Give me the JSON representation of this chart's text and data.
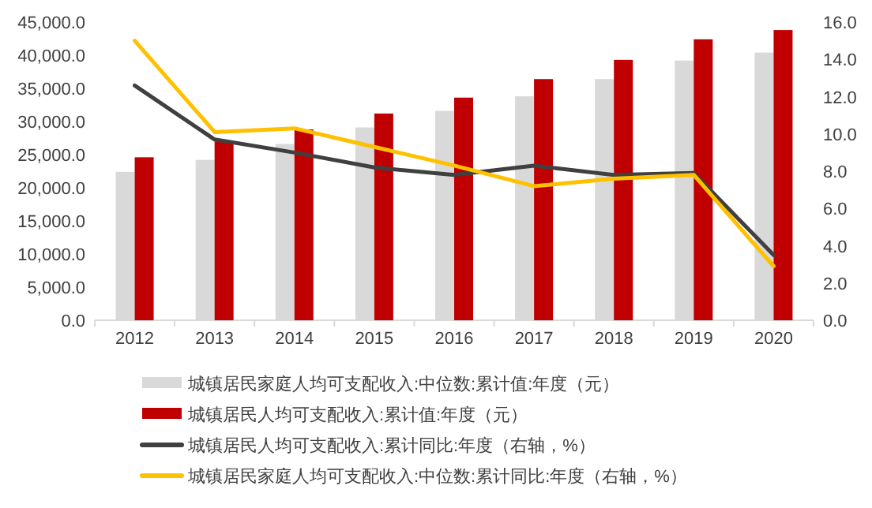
{
  "chart_data": {
    "type": "bar",
    "categories": [
      "2012",
      "2013",
      "2014",
      "2015",
      "2016",
      "2017",
      "2018",
      "2019",
      "2020"
    ],
    "series": [
      {
        "name": "城镇居民家庭人均可支配收入:中位数:累计值:年度（元）",
        "color": "#d9d9d9",
        "values": [
          22400,
          24200,
          26600,
          29100,
          31600,
          33800,
          36400,
          39200,
          40400
        ]
      },
      {
        "name": "城镇居民人均可支配收入:累计值:年度（元）",
        "color": "#c00000",
        "values": [
          24600,
          27000,
          28800,
          31200,
          33600,
          36400,
          39300,
          42400,
          43800
        ]
      },
      {
        "name": "城镇居民人均可支配收入:累计同比:年度（右轴，%）",
        "type": "line",
        "axis": "y2",
        "color": "#404040",
        "values": [
          12.6,
          9.7,
          9.0,
          8.2,
          7.8,
          8.3,
          7.8,
          7.9,
          3.5
        ]
      },
      {
        "name": "城镇居民家庭人均可支配收入:中位数:累计同比:年度（右轴，%）",
        "type": "line",
        "axis": "y2",
        "color": "#ffc000",
        "values": [
          15.0,
          10.1,
          10.3,
          9.3,
          8.3,
          7.2,
          7.6,
          7.8,
          2.9
        ]
      }
    ],
    "ylim": [
      0,
      45000
    ],
    "yticks": [
      {
        "value": 0,
        "label": "0.0"
      },
      {
        "value": 5000,
        "label": "5,000.0"
      },
      {
        "value": 10000,
        "label": "10,000.0"
      },
      {
        "value": 15000,
        "label": "15,000.0"
      },
      {
        "value": 20000,
        "label": "20,000.0"
      },
      {
        "value": 25000,
        "label": "25,000.0"
      },
      {
        "value": 30000,
        "label": "30,000.0"
      },
      {
        "value": 35000,
        "label": "35,000.0"
      },
      {
        "value": 40000,
        "label": "40,000.0"
      },
      {
        "value": 45000,
        "label": "45,000.0"
      }
    ],
    "y2lim": [
      0,
      16
    ],
    "y2ticks": [
      {
        "value": 0,
        "label": "0.0"
      },
      {
        "value": 2,
        "label": "2.0"
      },
      {
        "value": 4,
        "label": "4.0"
      },
      {
        "value": 6,
        "label": "6.0"
      },
      {
        "value": 8,
        "label": "8.0"
      },
      {
        "value": 10,
        "label": "10.0"
      },
      {
        "value": 12,
        "label": "12.0"
      },
      {
        "value": 14,
        "label": "14.0"
      },
      {
        "value": 16,
        "label": "16.0"
      }
    ],
    "legend": "bottom",
    "grid": false,
    "marker": "none"
  }
}
